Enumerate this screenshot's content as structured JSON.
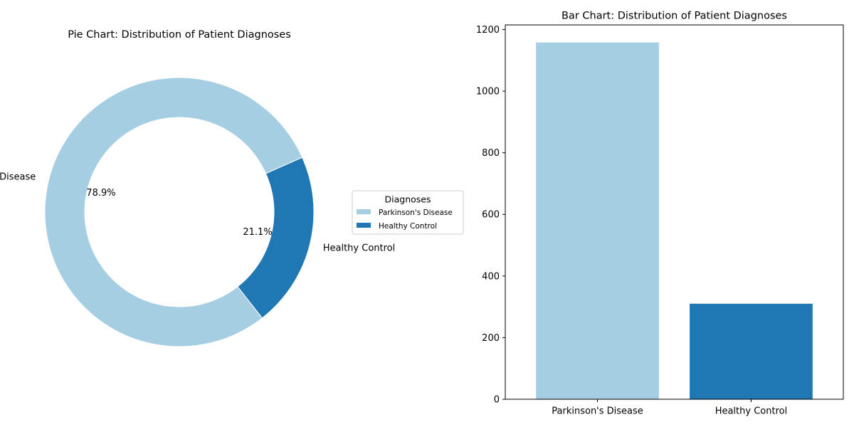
{
  "chart_data": [
    {
      "type": "pie",
      "title": "Pie Chart: Distribution of Patient Diagnoses",
      "donut": true,
      "labels": [
        "Parkinson's Disease",
        "Healthy Control"
      ],
      "values": [
        78.9,
        21.1
      ],
      "pct_labels": [
        "78.9%",
        "21.1%"
      ],
      "colors": [
        "#a6cee3",
        "#1f78b4"
      ],
      "legend": {
        "title": "Diagnoses",
        "placement": "right",
        "entries": [
          "Parkinson's Disease",
          "Healthy Control"
        ]
      }
    },
    {
      "type": "bar",
      "title": "Bar Chart: Distribution of Patient Diagnoses",
      "categories": [
        "Parkinson's Disease",
        "Healthy Control"
      ],
      "values": [
        1158,
        310
      ],
      "colors": [
        "#a6cee3",
        "#1f78b4"
      ],
      "ylim": [
        0,
        1215
      ],
      "yticks": [
        0,
        200,
        400,
        600,
        800,
        1000,
        1200
      ],
      "grid": false
    }
  ]
}
